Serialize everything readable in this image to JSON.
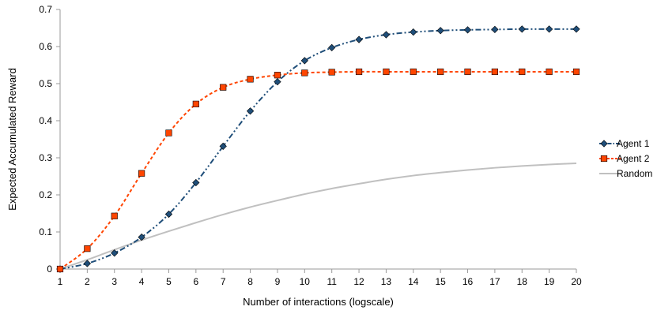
{
  "chart_data": {
    "type": "line",
    "xlabel": "Number of interactions (logscale)",
    "ylabel": "Expected Accumulated Reward",
    "x": [
      1,
      2,
      3,
      4,
      5,
      6,
      7,
      8,
      9,
      10,
      11,
      12,
      13,
      14,
      15,
      16,
      17,
      18,
      19,
      20
    ],
    "xlim": [
      1,
      20
    ],
    "ylim": [
      0,
      0.7
    ],
    "yticks": [
      "0",
      "0.1",
      "0.2",
      "0.3",
      "0.4",
      "0.5",
      "0.6",
      "0.7"
    ],
    "grid": false,
    "legend_position": "right",
    "series": [
      {
        "name": "Agent 1",
        "color": "#1f4e79",
        "marker": "diamond",
        "line_style": "dash-dot-dot",
        "values": [
          0.0,
          0.015,
          0.043,
          0.086,
          0.148,
          0.233,
          0.331,
          0.426,
          0.505,
          0.562,
          0.597,
          0.619,
          0.632,
          0.639,
          0.643,
          0.645,
          0.646,
          0.647,
          0.647,
          0.647
        ]
      },
      {
        "name": "Agent 2",
        "color": "#ff4500",
        "marker": "square",
        "line_style": "dashed",
        "values": [
          0.0,
          0.055,
          0.143,
          0.258,
          0.367,
          0.445,
          0.49,
          0.512,
          0.523,
          0.529,
          0.531,
          0.532,
          0.532,
          0.532,
          0.532,
          0.532,
          0.532,
          0.532,
          0.532,
          0.532
        ]
      },
      {
        "name": "Random",
        "color": "#c0c0c0",
        "marker": "none",
        "line_style": "solid",
        "values": [
          0.0,
          0.025,
          0.052,
          0.078,
          0.102,
          0.125,
          0.147,
          0.167,
          0.185,
          0.202,
          0.217,
          0.23,
          0.242,
          0.252,
          0.26,
          0.267,
          0.273,
          0.278,
          0.282,
          0.285
        ]
      }
    ]
  }
}
